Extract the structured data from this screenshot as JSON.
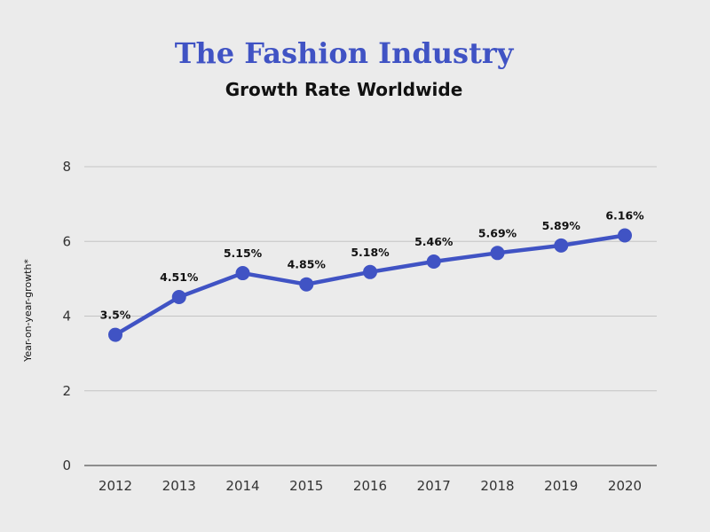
{
  "chart_data": {
    "type": "line",
    "title": "The Fashion Industry",
    "subtitle": "Growth Rate Worldwide",
    "xlabel": "",
    "ylabel": "Year-on-year-growth*",
    "categories": [
      "2012",
      "2013",
      "2014",
      "2015",
      "2016",
      "2017",
      "2018",
      "2019",
      "2020"
    ],
    "series": [
      {
        "values": [
          3.5,
          4.51,
          5.15,
          4.85,
          5.18,
          5.46,
          5.69,
          5.89,
          6.16
        ],
        "data_labels": [
          "3.5%",
          "4.51%",
          "5.15%",
          "4.85%",
          "5.18%",
          "5.46%",
          "5.69%",
          "5.89%",
          "6.16%"
        ],
        "color": "#4053c4"
      }
    ],
    "ylim": [
      0,
      8
    ],
    "yticks": [
      0,
      2,
      4,
      6,
      8
    ],
    "grid": true,
    "legend": "none",
    "colors": {
      "title": "#4053c4",
      "line": "#4053c4",
      "grid": "#c4c4c4",
      "background": "#ebebeb"
    }
  }
}
